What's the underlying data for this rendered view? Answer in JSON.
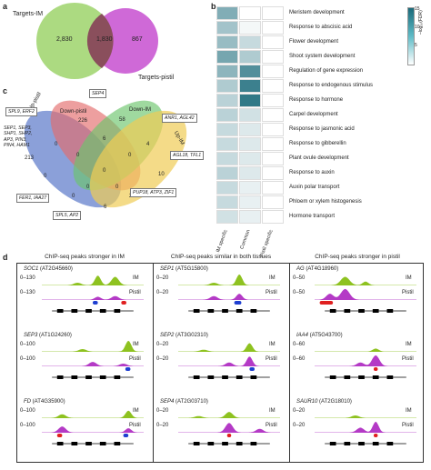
{
  "panel_a": {
    "letter": "a",
    "set1_label": "Targets-IM",
    "set2_label": "Targets-pistil",
    "only1": "2,830",
    "overlap": "1,830",
    "only2": "867"
  },
  "panel_b": {
    "letter": "b",
    "columns": [
      "IM specific",
      "Common",
      "Pistil specific"
    ],
    "legend_title": "–log₁₀(FDR)",
    "legend_ticks": [
      "15",
      "10",
      "5"
    ],
    "terms": [
      "Meristem development",
      "Response to abscisic acid",
      "Flower development",
      "Shoot system development",
      "Regulation of gene expression",
      "Response to endogenous stimulus",
      "Response to hormone",
      "Carpel development",
      "Response to jasmonic acid",
      "Response to gibberellin",
      "Plant ovule development",
      "Response to auxin",
      "Auxin polar transport",
      "Phloem or xylem histogenesis",
      "Hormone transport"
    ],
    "levels": [
      [
        0.55,
        0.0,
        0.0
      ],
      [
        0.4,
        0.05,
        0.0
      ],
      [
        0.45,
        0.25,
        0.0
      ],
      [
        0.6,
        0.35,
        0.0
      ],
      [
        0.5,
        0.75,
        0.0
      ],
      [
        0.35,
        0.85,
        0.0
      ],
      [
        0.3,
        0.9,
        0.0
      ],
      [
        0.3,
        0.2,
        0.0
      ],
      [
        0.25,
        0.15,
        0.0
      ],
      [
        0.25,
        0.15,
        0.0
      ],
      [
        0.25,
        0.15,
        0.0
      ],
      [
        0.3,
        0.15,
        0.0
      ],
      [
        0.25,
        0.1,
        0.0
      ],
      [
        0.25,
        0.1,
        0.0
      ],
      [
        0.2,
        0.1,
        0.0
      ]
    ],
    "colors": {
      "low": "#ffffff",
      "high": "#1a6a7a"
    }
  },
  "panel_c": {
    "letter": "c",
    "set_labels": [
      "Up-pistil",
      "Down-pistil",
      "Down-IM",
      "Up-IM"
    ],
    "counts": {
      "up_pistil": "213",
      "down_pistil": "226",
      "down_im": "58",
      "up_im": "99",
      "dp_dim": "6",
      "up_dp": "0",
      "dim_uim": "4",
      "up_dp_dim": "0",
      "dp_dim_uim": "0",
      "center_top": "0",
      "up_dim": "0",
      "dp_uim": "0",
      "up_dp_uim": "0",
      "up_dim_uim": "0",
      "up_dp_uim2": "2",
      "up_uim": "10",
      "all_low": "6"
    },
    "gene_boxes": [
      "SEP4",
      "SPL9, ERF2",
      "ANR1, AGL42",
      "SEP1, SEP3,\nSHP1, SHP2,\nAP3, PIN3,\nPIN4, HAM1",
      "AGL18, TFL1",
      "FER1, IAA27",
      "PUP18, ATP3, ZIF1",
      "SPL5, AP2"
    ]
  },
  "panel_d": {
    "letter": "d",
    "columns": [
      "ChIP-seq peaks stronger in IM",
      "ChIP-seq peaks similar in both tissues",
      "ChIP-seq peaks stronger in pistil"
    ],
    "genes": [
      [
        {
          "name": "SOC1",
          "id": "(AT2G45660)",
          "scale_im": "0–130",
          "scale_pi": "0–130"
        },
        {
          "name": "SEP3",
          "id": "(AT1G24260)",
          "scale_im": "0–100",
          "scale_pi": "0–100"
        },
        {
          "name": "FD",
          "id": "(AT4G35900)",
          "scale_im": "0–100",
          "scale_pi": "0–100"
        }
      ],
      [
        {
          "name": "SEP1",
          "id": "(AT5G15800)",
          "scale_im": "0–20",
          "scale_pi": "0–20"
        },
        {
          "name": "SEP2",
          "id": "(AT3G02310)",
          "scale_im": "0–20",
          "scale_pi": "0–20"
        },
        {
          "name": "SEP4",
          "id": "(AT2G03710)",
          "scale_im": "0–20",
          "scale_pi": "0–20"
        }
      ],
      [
        {
          "name": "AG",
          "id": "(AT4G18960)",
          "scale_im": "0–50",
          "scale_pi": "0–50"
        },
        {
          "name": "IAA4",
          "id": "(AT5G43700)",
          "scale_im": "0–60",
          "scale_pi": "0–60"
        },
        {
          "name": "SAUR10",
          "id": "(AT2G18010)",
          "scale_im": "0–20",
          "scale_pi": "0–20"
        }
      ]
    ],
    "track_im": "IM",
    "track_pistil": "Pistil",
    "colors": {
      "im": "#8ec220",
      "pistil": "#b43ac6",
      "peak_blue": "#1f3fd1",
      "peak_red": "#e02020"
    }
  }
}
